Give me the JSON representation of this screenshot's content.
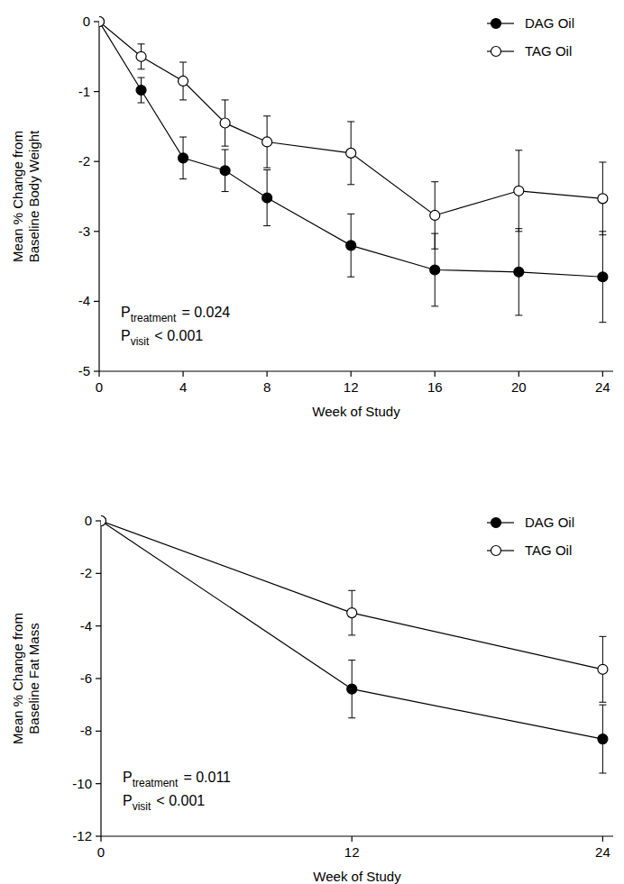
{
  "chart_data": [
    {
      "type": "line",
      "x_label": "Week of Study",
      "y_label": "Mean % Change from Baseline Body Weight",
      "x": [
        0,
        2,
        4,
        6,
        8,
        12,
        16,
        20,
        24
      ],
      "xlim": [
        0,
        24.5
      ],
      "xticks": [
        0,
        4,
        8,
        12,
        16,
        20,
        24
      ],
      "ylim": [
        -5,
        0
      ],
      "yticks": [
        0,
        -1,
        -2,
        -3,
        -4,
        -5
      ],
      "legend": "upper right",
      "series": [
        {
          "name": "DAG Oil",
          "color": "#000000",
          "marker": "filled-circle",
          "values": [
            0,
            -0.98,
            -1.95,
            -2.13,
            -2.52,
            -3.2,
            -3.55,
            -3.58,
            -3.65
          ],
          "errors": [
            0,
            0.18,
            0.3,
            0.3,
            0.4,
            0.45,
            0.52,
            0.62,
            0.65
          ]
        },
        {
          "name": "TAG Oil",
          "color": "#000000",
          "marker": "open-circle",
          "values": [
            0,
            -0.5,
            -0.85,
            -1.45,
            -1.72,
            -1.88,
            -2.77,
            -2.42,
            -2.53
          ],
          "errors": [
            0,
            0.18,
            0.27,
            0.33,
            0.37,
            0.45,
            0.48,
            0.58,
            0.52
          ]
        }
      ],
      "annotations": [
        {
          "base": "P",
          "sub": "treatment",
          "text": "= 0.024"
        },
        {
          "base": "P",
          "sub": "visit",
          "text": "< 0.001"
        }
      ]
    },
    {
      "type": "line",
      "x_label": "Week of Study",
      "y_label": "Mean % Change from Baseline Fat Mass",
      "x": [
        0,
        12,
        24
      ],
      "xlim": [
        0,
        24.5
      ],
      "xticks": [
        0,
        12,
        24
      ],
      "ylim": [
        -12,
        0
      ],
      "yticks": [
        0,
        -2,
        -4,
        -6,
        -8,
        -10,
        -12
      ],
      "legend": "upper right",
      "series": [
        {
          "name": "DAG Oil",
          "color": "#000000",
          "marker": "filled-circle",
          "values": [
            0,
            -6.4,
            -8.3
          ],
          "errors": [
            0,
            1.1,
            1.3
          ]
        },
        {
          "name": "TAG Oil",
          "color": "#000000",
          "marker": "open-circle",
          "values": [
            0,
            -3.5,
            -5.65
          ],
          "errors": [
            0,
            0.85,
            1.25
          ]
        }
      ],
      "annotations": [
        {
          "base": "P",
          "sub": "treatment",
          "text": "= 0.011"
        },
        {
          "base": "P",
          "sub": "visit",
          "text": "< 0.001"
        }
      ]
    }
  ]
}
